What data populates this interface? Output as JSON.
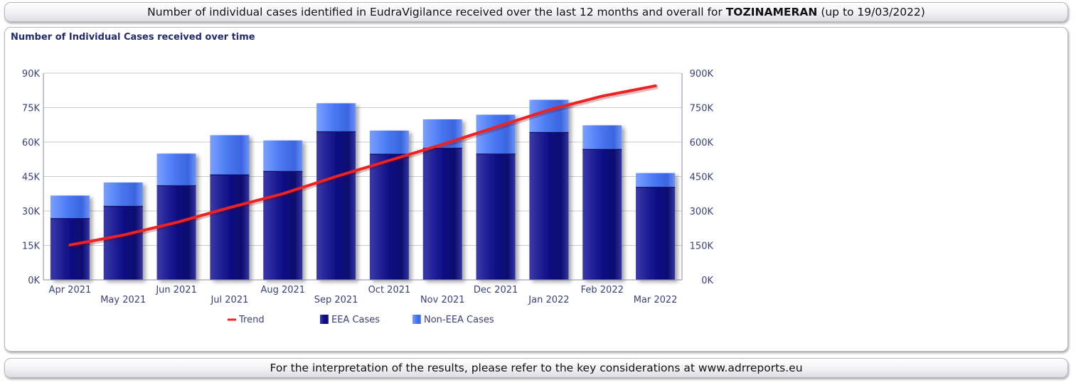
{
  "header": {
    "title_prefix": "Number of individual cases identified in EudraVigilance received over the last 12 months and overall for",
    "title_substance": "TOZINAMERAN",
    "title_suffix": "(up to 19/03/2022)"
  },
  "footer": {
    "note": "For the interpretation of the results, please refer to the key considerations at www.adrreports.eu"
  },
  "chart_data": {
    "type": "bar",
    "title": "Number of Individual Cases received over time",
    "categories": [
      "Apr 2021",
      "May 2021",
      "Jun 2021",
      "Jul 2021",
      "Aug 2021",
      "Sep 2021",
      "Oct 2021",
      "Nov 2021",
      "Dec 2021",
      "Jan 2022",
      "Feb 2022",
      "Mar 2022"
    ],
    "stacked": true,
    "series": [
      {
        "name": "EEA Cases",
        "axis": "left",
        "color": "#1a1a8c",
        "values": [
          26700,
          32000,
          41000,
          45700,
          47200,
          64500,
          54700,
          57300,
          54800,
          64200,
          56800,
          40300
        ]
      },
      {
        "name": "Non-EEA Cases",
        "axis": "left",
        "color": "#4d7df5",
        "values": [
          10000,
          10400,
          14000,
          17300,
          13500,
          12400,
          10300,
          12600,
          17100,
          14200,
          10500,
          6200
        ]
      }
    ],
    "line_series": {
      "name": "Trend",
      "axis": "right",
      "color": "#ee2222",
      "values": [
        152000,
        195000,
        250000,
        315000,
        375000,
        450000,
        520000,
        590000,
        665000,
        740000,
        800000,
        845000
      ]
    },
    "left_axis": {
      "min": 0,
      "max": 90000,
      "ticks": [
        "0K",
        "15K",
        "30K",
        "45K",
        "60K",
        "75K",
        "90K"
      ]
    },
    "right_axis": {
      "min": 0,
      "max": 900000,
      "ticks": [
        "0K",
        "150K",
        "300K",
        "450K",
        "600K",
        "750K",
        "900K"
      ]
    },
    "grid": true,
    "legend_position": "bottom"
  }
}
